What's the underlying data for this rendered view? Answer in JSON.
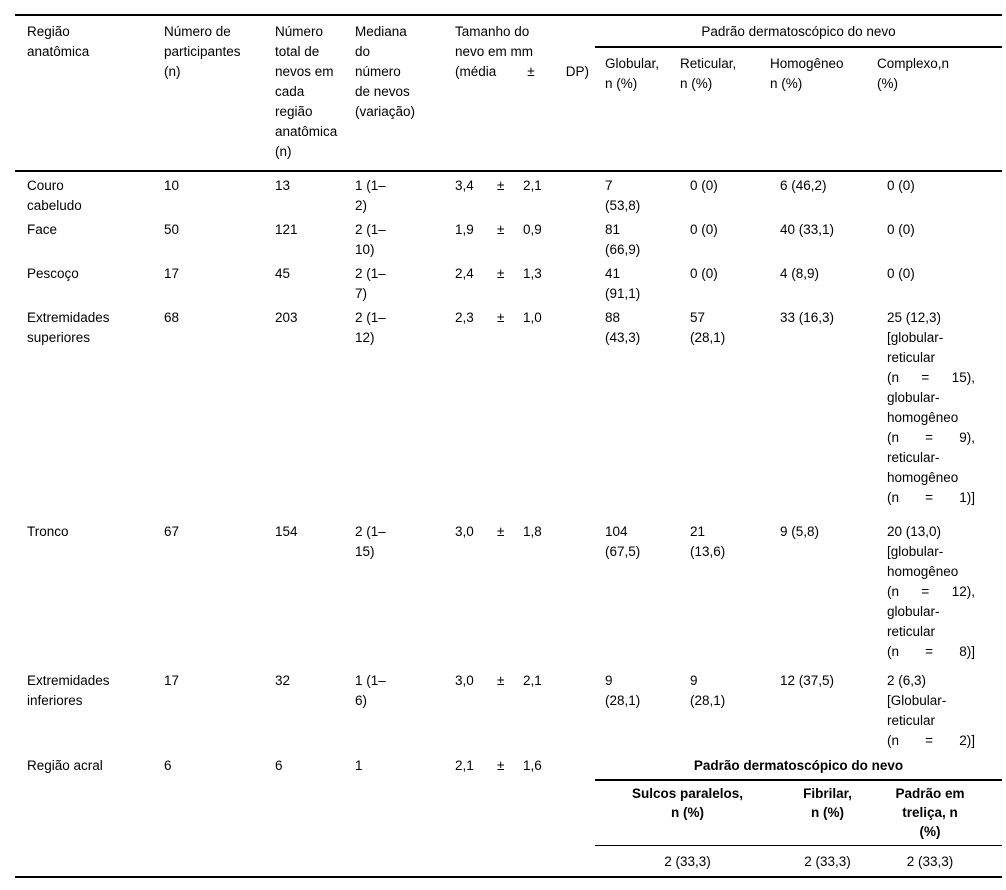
{
  "table": {
    "header": {
      "region": [
        "Região",
        "anatômica"
      ],
      "participants": [
        "Número de",
        "participantes",
        "(n)"
      ],
      "total_nevi": [
        "Número",
        "total de",
        "nevos em",
        "cada",
        "região",
        "anatômica",
        "(n)"
      ],
      "median": [
        "Mediana",
        "do",
        "número",
        "de nevos",
        "(variação)"
      ],
      "size": [
        "Tamanho do",
        "nevo em mm",
        {
          "j": [
            "(média",
            "±",
            "DP)"
          ]
        }
      ],
      "pattern_span": "Padrão dermatoscópico do nevo",
      "patterns": [
        [
          "Globular,",
          "n (%)"
        ],
        [
          "Reticular,",
          "n (%)"
        ],
        [
          "Homogêneo",
          "n (%)"
        ],
        [
          "Complexo,n",
          "(%)"
        ]
      ]
    },
    "rows": [
      {
        "region": [
          "Couro",
          "cabeludo"
        ],
        "participants": "10",
        "total": "13",
        "median": [
          "1 (1–",
          "2)"
        ],
        "size": {
          "mean": "3,4",
          "pm": "±",
          "sd": "2,1"
        },
        "globular": [
          "7",
          "(53,8)"
        ],
        "reticular": [
          "0 (0)"
        ],
        "homogeneo": [
          "6 (46,2)"
        ],
        "complexo": [
          "0 (0)"
        ]
      },
      {
        "region": [
          "Face"
        ],
        "participants": "50",
        "total": "121",
        "median": [
          "2 (1–",
          "10)"
        ],
        "size": {
          "mean": "1,9",
          "pm": "±",
          "sd": "0,9"
        },
        "globular": [
          "81",
          "(66,9)"
        ],
        "reticular": [
          "0 (0)"
        ],
        "homogeneo": [
          "40 (33,1)"
        ],
        "complexo": [
          "0 (0)"
        ]
      },
      {
        "region": [
          "Pescoço"
        ],
        "participants": "17",
        "total": "45",
        "median": [
          "2 (1–",
          "7)"
        ],
        "size": {
          "mean": "2,4",
          "pm": "±",
          "sd": "1,3"
        },
        "globular": [
          "41",
          "(91,1)"
        ],
        "reticular": [
          "0 (0)"
        ],
        "homogeneo": [
          "4 (8,9)"
        ],
        "complexo": [
          "0 (0)"
        ]
      },
      {
        "region": [
          "Extremidades",
          "superiores"
        ],
        "participants": "68",
        "total": "203",
        "median": [
          "2 (1–",
          "12)"
        ],
        "size": {
          "mean": "2,3",
          "pm": "±",
          "sd": "1,0"
        },
        "globular": [
          "88",
          "(43,3)"
        ],
        "reticular": [
          "57",
          "(28,1)"
        ],
        "homogeneo": [
          "33 (16,3)"
        ],
        "complexo": [
          "25 (12,3)",
          "[globular-",
          "reticular",
          {
            "j": [
              "(n",
              "=",
              "15),"
            ]
          },
          "globular-",
          "homogêneo",
          {
            "j": [
              "(n",
              "=",
              "9),"
            ]
          },
          "reticular-",
          "homogêneo",
          {
            "j": [
              "(n",
              "=",
              "1)]"
            ]
          }
        ]
      },
      {
        "region": [
          "Tronco"
        ],
        "participants": "67",
        "total": "154",
        "median": [
          "2 (1–",
          "15)"
        ],
        "size": {
          "mean": "3,0",
          "pm": "±",
          "sd": "1,8"
        },
        "globular": [
          "104",
          "(67,5)"
        ],
        "reticular": [
          "21",
          "(13,6)"
        ],
        "homogeneo": [
          "9 (5,8)"
        ],
        "complexo": [
          "20 (13,0)",
          "[globular-",
          "homogêneo",
          {
            "j": [
              "(n",
              "=",
              "12),"
            ]
          },
          "globular-",
          "reticular",
          {
            "j": [
              "(n",
              "=",
              "8)]"
            ]
          }
        ]
      },
      {
        "region": [
          "Extremidades",
          "inferiores"
        ],
        "participants": "17",
        "total": "32",
        "median": [
          "1 (1–",
          "6)"
        ],
        "size": {
          "mean": "3,0",
          "pm": "±",
          "sd": "2,1"
        },
        "globular": [
          "9",
          "(28,1)"
        ],
        "reticular": [
          "9",
          "(28,1)"
        ],
        "homogeneo": [
          "12 (37,5)"
        ],
        "complexo": [
          "2 (6,3)",
          "[Globular-",
          "reticular",
          {
            "j": [
              "(n",
              "=",
              "2)]"
            ]
          }
        ]
      },
      {
        "region": [
          "Região acral"
        ],
        "participants": "6",
        "total": "6",
        "median": [
          "1"
        ],
        "size": {
          "mean": "2,1",
          "pm": "±",
          "sd": "1,6"
        },
        "subtable": {
          "title": "Padrão dermatoscópico do nevo",
          "headers": [
            [
              "Sulcos paralelos,",
              "n (%)"
            ],
            [
              "Fibrilar,",
              "n (%)"
            ],
            [
              "Padrão em",
              "treliça, n",
              "(%)"
            ]
          ],
          "values": [
            "2 (33,3)",
            "2 (33,3)",
            "2 (33,3)"
          ]
        }
      }
    ]
  }
}
